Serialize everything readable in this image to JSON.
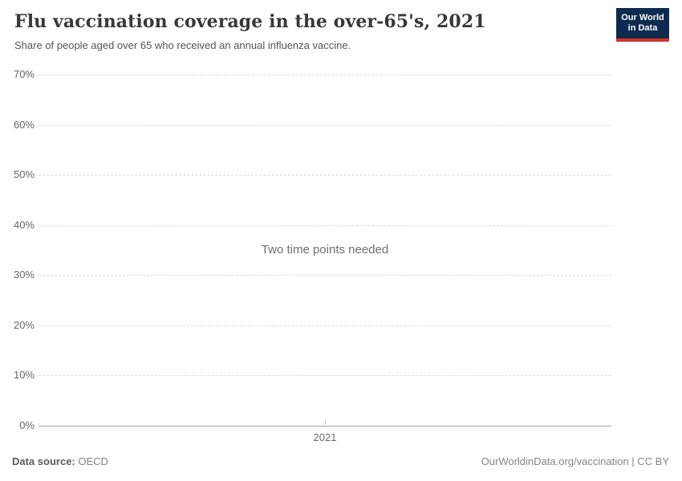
{
  "header": {
    "title": "Flu vaccination coverage in the over-65's, 2021",
    "subtitle": "Share of people aged over 65 who received an annual influenza vaccine."
  },
  "logo": {
    "line1": "Our World",
    "line2": "in Data"
  },
  "chart_data": {
    "type": "line",
    "title": "Flu vaccination coverage in the over-65's, 2021",
    "subtitle": "Share of people aged over 65 who received an annual influenza vaccine.",
    "empty_state_message": "Two time points needed",
    "series": [],
    "x": {
      "ticks": [
        "2021"
      ]
    },
    "y": {
      "label": "",
      "lim": [
        0,
        70
      ],
      "unit": "%",
      "grid": "horizontal-dashed",
      "ticks": [
        {
          "label": "0%",
          "value": 0
        },
        {
          "label": "10%",
          "value": 10
        },
        {
          "label": "20%",
          "value": 20
        },
        {
          "label": "30%",
          "value": 30
        },
        {
          "label": "40%",
          "value": 40
        },
        {
          "label": "50%",
          "value": 50
        },
        {
          "label": "60%",
          "value": 60
        },
        {
          "label": "70%",
          "value": 70
        }
      ]
    },
    "legend_position": "none"
  },
  "footer": {
    "source_label": "Data source:",
    "source_value": "OECD",
    "credit": "OurWorldinData.org/vaccination | CC BY"
  },
  "colors": {
    "title": "#383838",
    "subtitle": "#555555",
    "axis_label": "#666666",
    "gridline": "#dcdcdc",
    "axis_line": "#a3a3a3",
    "empty_message": "#6e6e6e",
    "footer_text": "#858585",
    "logo_background": "#0d2b4e",
    "logo_red": "#d0342c"
  }
}
